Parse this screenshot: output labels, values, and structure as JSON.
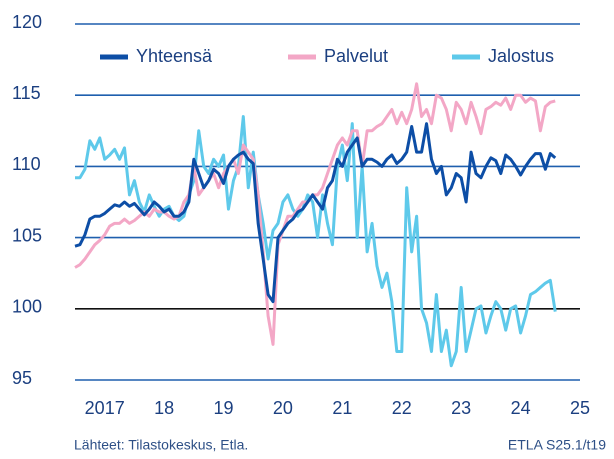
{
  "chart_data": {
    "type": "line",
    "source": "Lähteet:  Tilastokeskus, Etla.",
    "code": "ETLA S25.1/t19",
    "x": [
      2017,
      2017.083,
      2017.167,
      2017.25,
      2017.333,
      2017.417,
      2017.5,
      2017.583,
      2017.667,
      2017.75,
      2017.833,
      2017.917,
      2018,
      2018.083,
      2018.167,
      2018.25,
      2018.333,
      2018.417,
      2018.5,
      2018.583,
      2018.667,
      2018.75,
      2018.833,
      2018.917,
      2019,
      2019.083,
      2019.167,
      2019.25,
      2019.333,
      2019.417,
      2019.5,
      2019.583,
      2019.667,
      2019.75,
      2019.833,
      2019.917,
      2020,
      2020.083,
      2020.167,
      2020.25,
      2020.333,
      2020.417,
      2020.5,
      2020.583,
      2020.667,
      2020.75,
      2020.833,
      2020.917,
      2021,
      2021.083,
      2021.167,
      2021.25,
      2021.333,
      2021.417,
      2021.5,
      2021.583,
      2021.667,
      2021.75,
      2021.833,
      2021.917,
      2022,
      2022.083,
      2022.167,
      2022.25,
      2022.333,
      2022.417,
      2022.5,
      2022.583,
      2022.667,
      2022.75,
      2022.833,
      2022.917,
      2023,
      2023.083,
      2023.167,
      2023.25,
      2023.333,
      2023.417,
      2023.5,
      2023.583,
      2023.667,
      2023.75,
      2023.833,
      2023.917,
      2024,
      2024.083,
      2024.167,
      2024.25,
      2024.333,
      2024.417,
      2024.5,
      2024.583,
      2024.667,
      2024.75,
      2024.833,
      2024.917,
      2025,
      2025.083
    ],
    "series": [
      {
        "name": "Yhteensä",
        "color": "#0d4ea6",
        "values": [
          104.4,
          104.5,
          105.2,
          106.3,
          106.5,
          106.5,
          106.7,
          107.0,
          107.3,
          107.2,
          107.5,
          107.2,
          107.4,
          107.0,
          106.6,
          107.0,
          107.5,
          107.2,
          106.8,
          107.0,
          106.5,
          106.5,
          106.8,
          107.5,
          110.5,
          109.5,
          108.5,
          109.0,
          109.8,
          109.5,
          108.8,
          110.0,
          110.5,
          110.8,
          111.0,
          110.5,
          110.2,
          106.0,
          103.5,
          101.0,
          100.5,
          105.0,
          105.5,
          106.0,
          106.3,
          106.8,
          107.0,
          107.5,
          108.0,
          107.5,
          107.0,
          108.5,
          109.0,
          110.5,
          110.0,
          111.0,
          111.5,
          112.0,
          110.0,
          110.5,
          110.5,
          110.3,
          110.0,
          110.5,
          110.8,
          110.2,
          110.5,
          111.0,
          112.8,
          111.0,
          111.0,
          113.0,
          110.5,
          109.5,
          110.0,
          108.0,
          108.5,
          109.5,
          109.2,
          107.5,
          111.0,
          109.5,
          109.2,
          110.0,
          110.6,
          110.4,
          109.5,
          110.8,
          110.5,
          110.0,
          109.4,
          110.0,
          110.5,
          110.9,
          110.9,
          109.8,
          110.9,
          110.6
        ]
      },
      {
        "name": "Palvelut",
        "color": "#f3a7c6",
        "values": [
          102.9,
          103.1,
          103.5,
          104.0,
          104.5,
          104.8,
          105.2,
          105.8,
          106.0,
          106.0,
          106.3,
          106.0,
          106.2,
          106.5,
          106.8,
          106.5,
          107.0,
          106.8,
          106.8,
          106.5,
          106.3,
          106.5,
          107.5,
          108.0,
          110.0,
          108.0,
          108.5,
          109.0,
          109.5,
          108.5,
          109.5,
          110.0,
          110.5,
          109.5,
          111.5,
          111.0,
          110.5,
          108.0,
          104.0,
          99.5,
          97.5,
          104.5,
          105.5,
          106.5,
          106.5,
          107.0,
          107.5,
          107.5,
          108.0,
          108.0,
          108.5,
          109.5,
          110.5,
          111.5,
          112.0,
          111.5,
          112.5,
          112.5,
          110.0,
          112.5,
          112.5,
          112.8,
          113.0,
          113.5,
          114.0,
          113.0,
          113.8,
          113.0,
          114.0,
          115.8,
          113.5,
          114.0,
          113.0,
          115.0,
          114.8,
          114.0,
          112.5,
          114.5,
          114.0,
          113.0,
          114.5,
          113.5,
          112.3,
          114.0,
          114.2,
          114.5,
          114.3,
          114.8,
          114.0,
          115.0,
          115.0,
          114.5,
          114.8,
          114.6,
          112.5,
          114.2,
          114.5,
          114.6
        ]
      },
      {
        "name": "Jalostus",
        "color": "#5ec9ea",
        "values": [
          109.2,
          109.2,
          109.8,
          111.8,
          111.2,
          112.0,
          110.5,
          110.8,
          111.2,
          110.5,
          111.3,
          108.0,
          109.0,
          107.5,
          106.8,
          108.0,
          107.2,
          106.5,
          107.0,
          107.2,
          106.5,
          106.2,
          106.5,
          108.0,
          109.0,
          112.5,
          110.0,
          109.5,
          110.5,
          110.0,
          110.8,
          107.0,
          109.0,
          110.0,
          113.5,
          108.5,
          111.0,
          108.0,
          106.0,
          103.5,
          105.5,
          106.0,
          107.5,
          108.0,
          107.0,
          106.5,
          107.0,
          108.0,
          107.5,
          105.0,
          108.0,
          106.0,
          104.5,
          110.0,
          111.5,
          109.0,
          113.0,
          105.0,
          110.0,
          104.0,
          106.0,
          103.0,
          101.5,
          102.5,
          100.5,
          97.0,
          97.0,
          108.5,
          104.0,
          106.5,
          100.0,
          99.0,
          97.0,
          101.0,
          97.0,
          98.5,
          96.0,
          97.0,
          101.5,
          97.0,
          98.5,
          100.0,
          100.2,
          98.3,
          99.5,
          100.5,
          100.0,
          98.5,
          100.0,
          100.2,
          98.3,
          99.5,
          101.0,
          101.2,
          101.5,
          101.8,
          102.0,
          99.8
        ]
      }
    ],
    "xlim": [
      2017,
      2025.5
    ],
    "xticks": [
      {
        "value": 2017.5,
        "label": "2017"
      },
      {
        "value": 2018.5,
        "label": "18"
      },
      {
        "value": 2019.5,
        "label": "19"
      },
      {
        "value": 2020.5,
        "label": "20"
      },
      {
        "value": 2021.5,
        "label": "21"
      },
      {
        "value": 2022.5,
        "label": "22"
      },
      {
        "value": 2023.5,
        "label": "23"
      },
      {
        "value": 2024.5,
        "label": "24"
      },
      {
        "value": 2025.5,
        "label": "25"
      }
    ],
    "ylim": [
      95,
      120
    ],
    "yticks": [
      95,
      100,
      105,
      110,
      115,
      120
    ],
    "baseline": 100,
    "grid": true,
    "legend": "top"
  }
}
